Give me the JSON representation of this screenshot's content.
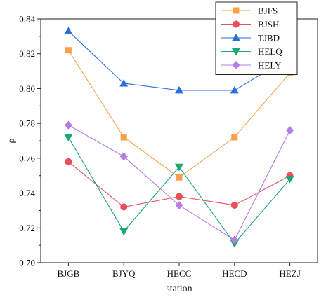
{
  "chart_data": {
    "type": "line",
    "xlabel": "station",
    "ylabel": "ρ",
    "categories": [
      "BJGB",
      "BJYQ",
      "HECC",
      "HECD",
      "HEZJ"
    ],
    "ylim": [
      0.7,
      0.84
    ],
    "yticks": [
      "0.70",
      "0.72",
      "0.74",
      "0.76",
      "0.78",
      "0.80",
      "0.82",
      "0.84"
    ],
    "grid": false,
    "legend_position": "top-right",
    "series": [
      {
        "name": "BJFS",
        "color": "#f5a04a",
        "marker": "square",
        "values": [
          0.822,
          0.772,
          0.749,
          0.772,
          0.809
        ]
      },
      {
        "name": "BJSH",
        "color": "#e8505b",
        "marker": "circle",
        "values": [
          0.758,
          0.732,
          0.738,
          0.733,
          0.75
        ]
      },
      {
        "name": "TJBD",
        "color": "#2a6fdb",
        "marker": "triangle-up",
        "values": [
          0.833,
          0.803,
          0.799,
          0.799,
          0.818
        ]
      },
      {
        "name": "HELQ",
        "color": "#1aa872",
        "marker": "triangle-down",
        "values": [
          0.772,
          0.718,
          0.755,
          0.711,
          0.748
        ]
      },
      {
        "name": "HELY",
        "color": "#b57be6",
        "marker": "diamond",
        "values": [
          0.779,
          0.761,
          0.733,
          0.713,
          0.776
        ]
      }
    ]
  }
}
